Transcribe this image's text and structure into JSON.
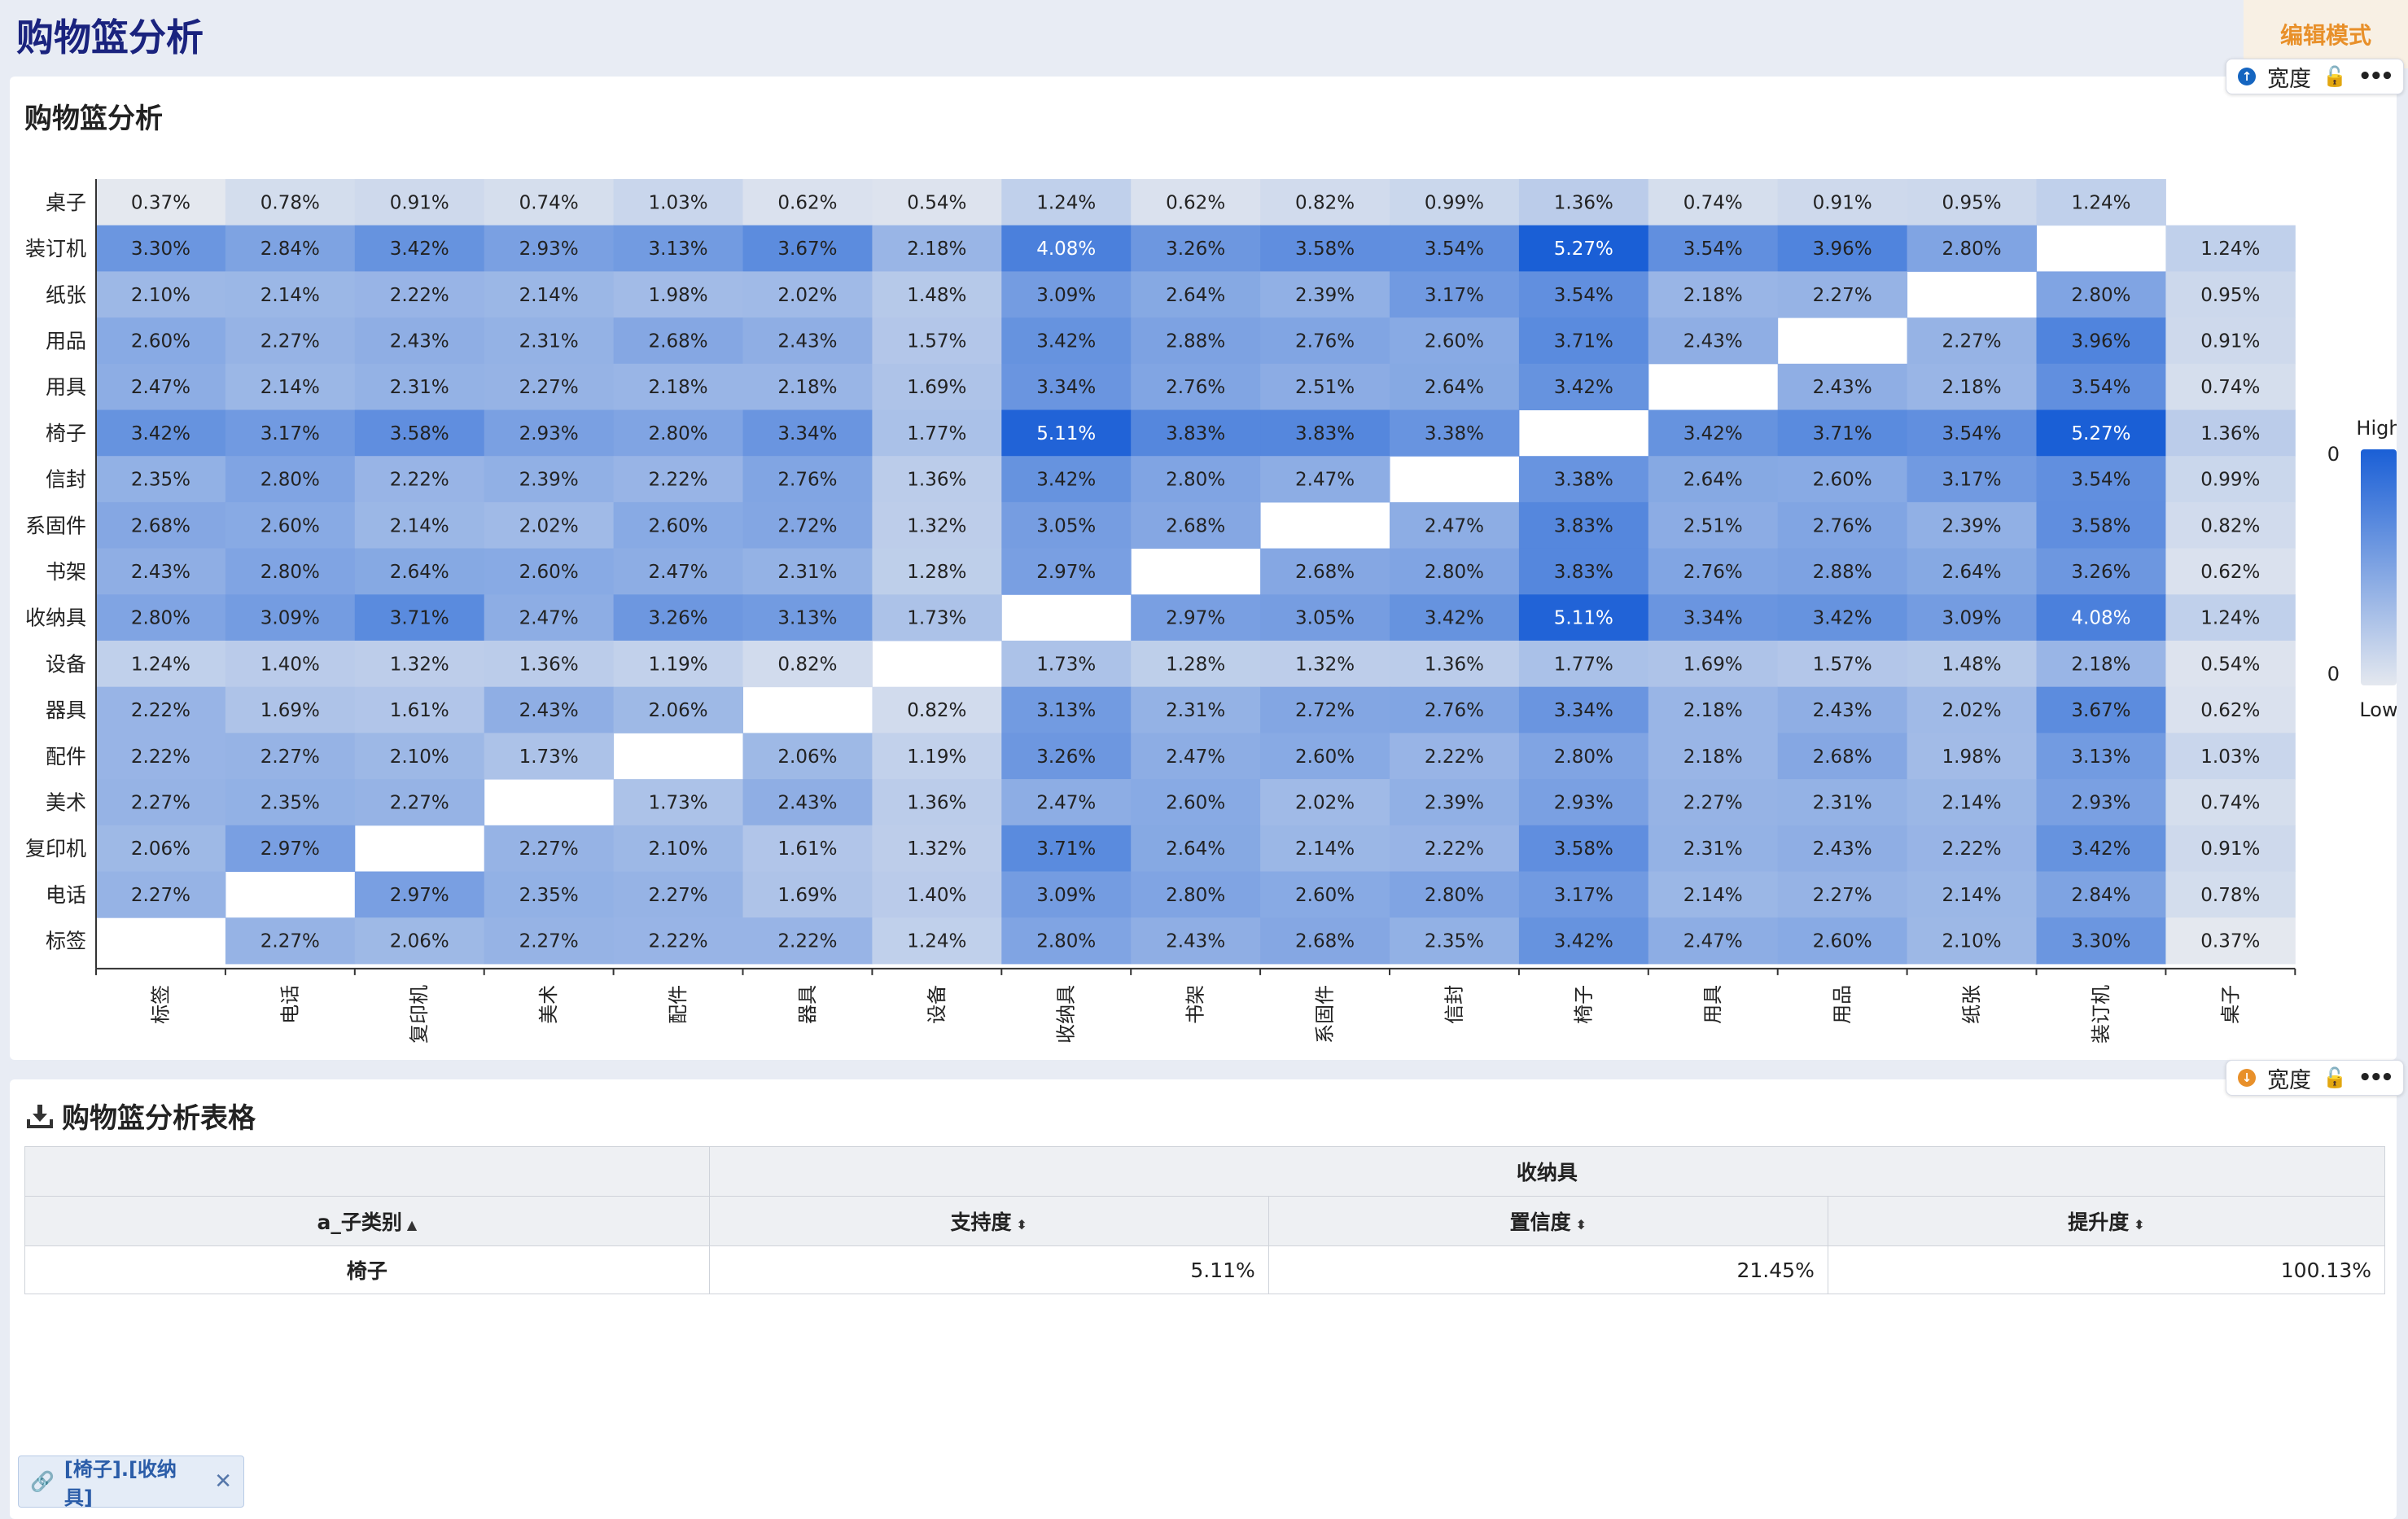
{
  "page": {
    "title": "购物篮分析",
    "edit_mode": "编辑模式"
  },
  "chart_card": {
    "title": "购物篮分析",
    "toolbar": {
      "width_label": "宽度"
    }
  },
  "table_card": {
    "title": "购物篮分析表格",
    "toolbar": {
      "width_label": "宽度"
    },
    "group_header": "收纳具",
    "columns": [
      "a_子类别",
      "支持度",
      "置信度",
      "提升度"
    ],
    "rows": [
      {
        "cat": "椅子",
        "support": "5.11%",
        "confidence": "21.45%",
        "lift": "100.13%"
      }
    ]
  },
  "filter_chip": {
    "label": "[椅子].[收纳具]"
  },
  "legend": {
    "high": "High",
    "low": "Low",
    "max_tick": "0",
    "min_tick": "0"
  },
  "chart_data": {
    "type": "heatmap",
    "title": "",
    "x_categories": [
      "标签",
      "电话",
      "复印机",
      "美术",
      "配件",
      "器具",
      "设备",
      "收纳具",
      "书架",
      "系固件",
      "信封",
      "椅子",
      "用具",
      "用品",
      "纸张",
      "装订机",
      "桌子"
    ],
    "y_categories": [
      "桌子",
      "装订机",
      "纸张",
      "用品",
      "用具",
      "椅子",
      "信封",
      "系固件",
      "书架",
      "收纳具",
      "设备",
      "器具",
      "配件",
      "美术",
      "复印机",
      "电话",
      "标签"
    ],
    "value_unit": "%",
    "values": [
      [
        0.37,
        0.78,
        0.91,
        0.74,
        1.03,
        0.62,
        0.54,
        1.24,
        0.62,
        0.82,
        0.99,
        1.36,
        0.74,
        0.91,
        0.95,
        1.24,
        null
      ],
      [
        3.3,
        2.84,
        3.42,
        2.93,
        3.13,
        3.67,
        2.18,
        4.08,
        3.26,
        3.58,
        3.54,
        5.27,
        3.54,
        3.96,
        2.8,
        null,
        1.24
      ],
      [
        2.1,
        2.14,
        2.22,
        2.14,
        1.98,
        2.02,
        1.48,
        3.09,
        2.64,
        2.39,
        3.17,
        3.54,
        2.18,
        2.27,
        null,
        2.8,
        0.95
      ],
      [
        2.6,
        2.27,
        2.43,
        2.31,
        2.68,
        2.43,
        1.57,
        3.42,
        2.88,
        2.76,
        2.6,
        3.71,
        2.43,
        null,
        2.27,
        3.96,
        0.91
      ],
      [
        2.47,
        2.14,
        2.31,
        2.27,
        2.18,
        2.18,
        1.69,
        3.34,
        2.76,
        2.51,
        2.64,
        3.42,
        null,
        2.43,
        2.18,
        3.54,
        0.74
      ],
      [
        3.42,
        3.17,
        3.58,
        2.93,
        2.8,
        3.34,
        1.77,
        5.11,
        3.83,
        3.83,
        3.38,
        null,
        3.42,
        3.71,
        3.54,
        5.27,
        1.36
      ],
      [
        2.35,
        2.8,
        2.22,
        2.39,
        2.22,
        2.76,
        1.36,
        3.42,
        2.8,
        2.47,
        null,
        3.38,
        2.64,
        2.6,
        3.17,
        3.54,
        0.99
      ],
      [
        2.68,
        2.6,
        2.14,
        2.02,
        2.6,
        2.72,
        1.32,
        3.05,
        2.68,
        null,
        2.47,
        3.83,
        2.51,
        2.76,
        2.39,
        3.58,
        0.82
      ],
      [
        2.43,
        2.8,
        2.64,
        2.6,
        2.47,
        2.31,
        1.28,
        2.97,
        null,
        2.68,
        2.8,
        3.83,
        2.76,
        2.88,
        2.64,
        3.26,
        0.62
      ],
      [
        2.8,
        3.09,
        3.71,
        2.47,
        3.26,
        3.13,
        1.73,
        null,
        2.97,
        3.05,
        3.42,
        5.11,
        3.34,
        3.42,
        3.09,
        4.08,
        1.24
      ],
      [
        1.24,
        1.4,
        1.32,
        1.36,
        1.19,
        0.82,
        null,
        1.73,
        1.28,
        1.32,
        1.36,
        1.77,
        1.69,
        1.57,
        1.48,
        2.18,
        0.54
      ],
      [
        2.22,
        1.69,
        1.61,
        2.43,
        2.06,
        null,
        0.82,
        3.13,
        2.31,
        2.72,
        2.76,
        3.34,
        2.18,
        2.43,
        2.02,
        3.67,
        0.62
      ],
      [
        2.22,
        2.27,
        2.1,
        1.73,
        null,
        2.06,
        1.19,
        3.26,
        2.47,
        2.6,
        2.22,
        2.8,
        2.18,
        2.68,
        1.98,
        3.13,
        1.03
      ],
      [
        2.27,
        2.35,
        2.27,
        null,
        1.73,
        2.43,
        1.36,
        2.47,
        2.6,
        2.02,
        2.39,
        2.93,
        2.27,
        2.31,
        2.14,
        2.93,
        0.74
      ],
      [
        2.06,
        2.97,
        null,
        2.27,
        2.1,
        1.61,
        1.32,
        3.71,
        2.64,
        2.14,
        2.22,
        3.58,
        2.31,
        2.43,
        2.22,
        3.42,
        0.91
      ],
      [
        2.27,
        null,
        2.97,
        2.35,
        2.27,
        1.69,
        1.4,
        3.09,
        2.8,
        2.6,
        2.8,
        3.17,
        2.14,
        2.27,
        2.14,
        2.84,
        0.78
      ],
      [
        null,
        2.27,
        2.06,
        2.27,
        2.22,
        2.22,
        1.24,
        2.8,
        2.43,
        2.68,
        2.35,
        3.42,
        2.47,
        2.6,
        2.1,
        3.3,
        0.37
      ]
    ],
    "color_low": "#e4e8ef",
    "color_high": "#1a5fd6",
    "legend_position": "right"
  }
}
